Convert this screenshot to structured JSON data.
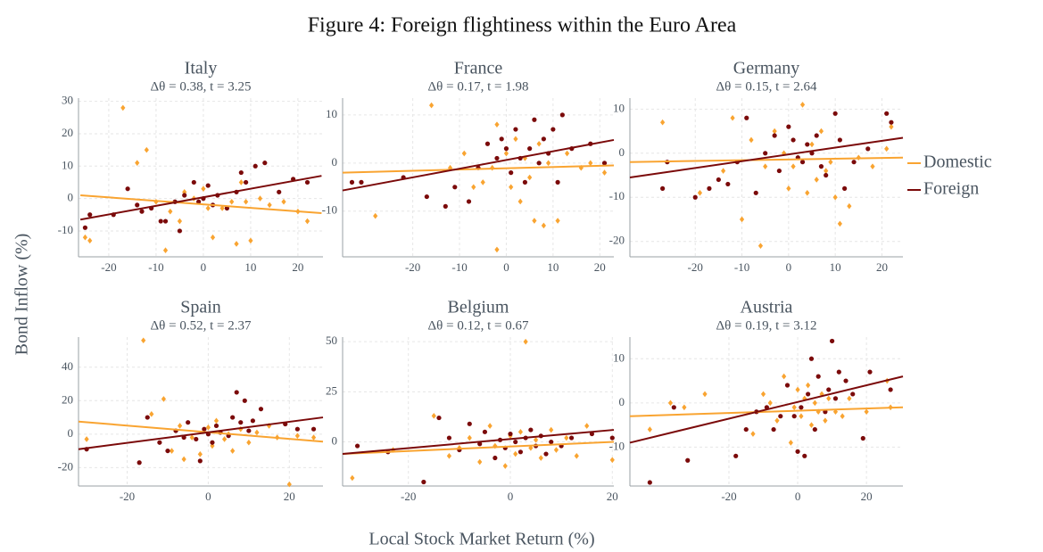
{
  "title": "Figure 4: Foreign flightiness within the Euro Area",
  "xlabel": "Local Stock Market Return (%)",
  "ylabel": "Bond Inflow (%)",
  "chart_data": [
    {
      "type": "scatter",
      "title": "Italy",
      "subtitle": "Δθ = 0.38, t = 3.25",
      "xlim": [
        -26.4,
        25.3
      ],
      "ylim": [
        -18,
        31
      ],
      "xticks": [
        -20,
        -10,
        0,
        10,
        20
      ],
      "yticks": [
        -10,
        0,
        10,
        20,
        30
      ],
      "grid": true,
      "series": [
        {
          "name": "Domestic",
          "color": "#f9a431",
          "x": [
            -25,
            -24,
            -17,
            -14,
            -12,
            -10,
            -7,
            -5,
            -4,
            -8,
            -2,
            0,
            1,
            2,
            4,
            6,
            7,
            8,
            9,
            10,
            12,
            14,
            17,
            20,
            22
          ],
          "values": [
            -12,
            -13,
            28,
            11,
            15,
            -1,
            -4,
            -7,
            2,
            -16,
            0,
            3,
            -3,
            -12,
            -3,
            -1,
            -14,
            5,
            -1,
            -13,
            0,
            -2,
            -1,
            -4,
            -7
          ],
          "fit_x": [
            -26,
            25
          ],
          "fit_values": [
            1,
            -4.5
          ]
        },
        {
          "name": "Foreign",
          "color": "#7b0a0a",
          "x": [
            -25,
            -24,
            -19,
            -16,
            -14,
            -13,
            -11,
            -9,
            -8,
            -6,
            -5,
            -4,
            -2,
            -1,
            0,
            1,
            2,
            3,
            5,
            7,
            8,
            9,
            11,
            13,
            16,
            19,
            22
          ],
          "values": [
            -9,
            -5,
            -5,
            3,
            -2,
            -4,
            -3,
            -7,
            -7,
            -1,
            -10,
            1,
            5,
            -1,
            0,
            4,
            -2,
            1,
            -3,
            2,
            8,
            5,
            10,
            11,
            2,
            6,
            5
          ],
          "fit_x": [
            -26,
            25
          ],
          "fit_values": [
            -6.5,
            7
          ]
        }
      ]
    },
    {
      "type": "scatter",
      "title": "France",
      "subtitle": "Δθ = 0.17, t = 1.98",
      "xlim": [
        -35,
        23
      ],
      "ylim": [
        -19.5,
        13.5
      ],
      "xticks": [
        -20,
        -10,
        0,
        10,
        20
      ],
      "yticks": [
        -10,
        0,
        10
      ],
      "grid": true,
      "series": [
        {
          "name": "Domestic",
          "color": "#f9a431",
          "x": [
            -28,
            -16,
            -12,
            -9,
            -7,
            -5,
            -3,
            -2,
            0,
            1,
            2,
            3,
            4,
            5,
            6,
            7,
            8,
            9,
            11,
            13,
            16,
            18,
            21,
            -2
          ],
          "values": [
            -11,
            12,
            -1,
            2,
            -5,
            -4,
            -1,
            8,
            2,
            -5,
            5,
            -8,
            1,
            -3,
            -12,
            4,
            -13,
            0,
            -12,
            2,
            -1,
            0,
            -2,
            -18
          ],
          "fit_x": [
            -35,
            23
          ],
          "fit_values": [
            -2,
            -0.5
          ]
        },
        {
          "name": "Foreign",
          "color": "#7b0a0a",
          "x": [
            -33,
            -31,
            -22,
            -17,
            -13,
            -11,
            -8,
            -6,
            -4,
            -2,
            -1,
            0,
            1,
            2,
            3,
            4,
            5,
            6,
            7,
            8,
            9,
            10,
            11,
            12,
            14,
            18,
            21
          ],
          "values": [
            -4,
            -4,
            -3,
            -7,
            -9,
            -5,
            -8,
            -1,
            4,
            1,
            5,
            3,
            -2,
            7,
            1,
            -4,
            3,
            9,
            0,
            5,
            2,
            7,
            -4,
            10,
            3,
            4,
            0
          ],
          "fit_x": [
            -35,
            23
          ],
          "fit_values": [
            -5.7,
            4.8
          ]
        }
      ]
    },
    {
      "type": "scatter",
      "title": "Germany",
      "subtitle": "Δθ = 0.15, t = 2.64",
      "xlim": [
        -34,
        24.5
      ],
      "ylim": [
        -23.5,
        12.5
      ],
      "xticks": [
        -20,
        -10,
        0,
        10,
        20
      ],
      "yticks": [
        -20,
        -10,
        0,
        10
      ],
      "grid": true,
      "series": [
        {
          "name": "Domestic",
          "color": "#f9a431",
          "x": [
            -27,
            -19,
            -14,
            -12,
            -10,
            -8,
            -6,
            -5,
            -3,
            -1,
            0,
            1,
            2,
            3,
            4,
            5,
            6,
            7,
            8,
            9,
            10,
            11,
            13,
            15,
            18,
            21,
            22
          ],
          "values": [
            7,
            -9,
            -4,
            8,
            -15,
            3,
            -21,
            -3,
            5,
            0,
            -8,
            -3,
            -1,
            11,
            -9,
            2,
            -6,
            5,
            -4,
            -2,
            -10,
            -16,
            -12,
            -1,
            -3,
            1,
            6
          ],
          "fit_x": [
            -34,
            24.5
          ],
          "fit_values": [
            -2,
            -1
          ]
        },
        {
          "name": "Foreign",
          "color": "#7b0a0a",
          "x": [
            -27,
            -26,
            -20,
            -17,
            -15,
            -13,
            -11,
            -9,
            -7,
            -5,
            -3,
            -2,
            0,
            1,
            2,
            3,
            4,
            5,
            6,
            7,
            8,
            10,
            11,
            12,
            14,
            17,
            21,
            22
          ],
          "values": [
            -8,
            -2,
            -10,
            -8,
            -6,
            -7,
            -2,
            8,
            -9,
            0,
            4,
            -4,
            6,
            3,
            -1,
            -2,
            2,
            0,
            4,
            -3,
            -5,
            9,
            3,
            -8,
            -2,
            1,
            9,
            7
          ],
          "fit_x": [
            -34,
            24.5
          ],
          "fit_values": [
            -5.5,
            3.5
          ]
        }
      ]
    },
    {
      "type": "scatter",
      "title": "Spain",
      "subtitle": "Δθ = 0.52, t = 2.37",
      "xlim": [
        -32,
        28.3
      ],
      "ylim": [
        -31,
        58
      ],
      "xticks": [
        -20,
        0,
        20
      ],
      "yticks": [
        -20,
        0,
        20,
        40
      ],
      "grid": true,
      "series": [
        {
          "name": "Domestic",
          "color": "#f9a431",
          "x": [
            -30,
            -16,
            -14,
            -11,
            -9,
            -7,
            -6,
            -4,
            -2,
            0,
            1,
            2,
            4,
            5,
            6,
            8,
            10,
            12,
            15,
            17,
            20,
            22,
            26
          ],
          "values": [
            -3,
            56,
            12,
            21,
            -10,
            5,
            -15,
            -2,
            -12,
            4,
            -7,
            8,
            -3,
            0,
            -10,
            3,
            -5,
            1,
            5,
            -2,
            -30,
            -1,
            -2
          ],
          "fit_x": [
            -32,
            28.3
          ],
          "fit_values": [
            7.5,
            -4.5
          ]
        },
        {
          "name": "Foreign",
          "color": "#7b0a0a",
          "x": [
            -30,
            -17,
            -15,
            -12,
            -10,
            -8,
            -6,
            -5,
            -3,
            -2,
            -1,
            0,
            1,
            2,
            3,
            5,
            6,
            7,
            8,
            9,
            10,
            11,
            13,
            19,
            22,
            26
          ],
          "values": [
            -9,
            -17,
            10,
            -5,
            -10,
            2,
            -2,
            7,
            -3,
            -16,
            3,
            0,
            -5,
            5,
            1,
            -1,
            10,
            25,
            7,
            20,
            2,
            8,
            15,
            6,
            3,
            3
          ],
          "fit_x": [
            -32,
            28.3
          ],
          "fit_values": [
            -9,
            10
          ]
        }
      ]
    },
    {
      "type": "scatter",
      "title": "Belgium",
      "subtitle": "Δθ = 0.12, t = 0.67",
      "xlim": [
        -32.9,
        20.3
      ],
      "ylim": [
        -22,
        52.3
      ],
      "xticks": [
        -20,
        0,
        20
      ],
      "yticks": [
        0,
        25,
        50
      ],
      "grid": true,
      "series": [
        {
          "name": "Domestic",
          "color": "#f9a431",
          "x": [
            -31,
            -23,
            -15,
            -12,
            -10,
            -8,
            -6,
            -4,
            -3,
            -1,
            0,
            1,
            2,
            3,
            4,
            5,
            6,
            8,
            9,
            11,
            13,
            15,
            20
          ],
          "values": [
            -18,
            -4,
            13,
            -7,
            -3,
            2,
            -10,
            8,
            -2,
            -12,
            3,
            -6,
            5,
            50,
            -3,
            1,
            -8,
            6,
            -4,
            2,
            -7,
            8,
            -9
          ],
          "fit_x": [
            -32.9,
            20.3
          ],
          "fit_values": [
            -6,
            0
          ]
        },
        {
          "name": "Foreign",
          "color": "#7b0a0a",
          "x": [
            -30,
            -24,
            -17,
            -14,
            -12,
            -10,
            -8,
            -6,
            -5,
            -3,
            -2,
            -1,
            0,
            1,
            2,
            3,
            4,
            5,
            6,
            7,
            8,
            10,
            12,
            16,
            20
          ],
          "values": [
            -2,
            -5,
            -20,
            12,
            2,
            -4,
            9,
            -1,
            5,
            -8,
            1,
            -3,
            4,
            0,
            -5,
            2,
            6,
            -2,
            3,
            -6,
            0,
            -2,
            2,
            4,
            2
          ],
          "fit_x": [
            -32.9,
            20.3
          ],
          "fit_values": [
            -6,
            6
          ]
        }
      ]
    },
    {
      "type": "scatter",
      "title": "Austria",
      "subtitle": "Δθ = 0.19, t = 3.12",
      "xlim": [
        -48.8,
        30.6
      ],
      "ylim": [
        -18.8,
        14.9
      ],
      "xticks": [
        -20,
        0,
        20
      ],
      "yticks": [
        -10,
        0,
        10
      ],
      "grid": true,
      "series": [
        {
          "name": "Domestic",
          "color": "#f9a431",
          "x": [
            -43,
            -37,
            -33,
            -27,
            -13,
            -10,
            -8,
            -6,
            -4,
            -2,
            -1,
            0,
            1,
            2,
            3,
            4,
            5,
            6,
            7,
            8,
            9,
            11,
            13,
            15,
            20,
            27,
            26
          ],
          "values": [
            -6,
            0,
            -1,
            2,
            -7,
            2,
            0,
            -4,
            6,
            -9,
            -1,
            3,
            -3,
            1,
            4,
            -5,
            0,
            -2,
            2,
            -4,
            1,
            -2,
            -3,
            1,
            -2,
            -1,
            5
          ],
          "fit_x": [
            -48.8,
            30.6
          ],
          "fit_values": [
            -3,
            -1
          ]
        },
        {
          "name": "Foreign",
          "color": "#7b0a0a",
          "x": [
            -43,
            -36,
            -32,
            -18,
            -15,
            -12,
            -9,
            -7,
            -5,
            -3,
            -1,
            0,
            1,
            2,
            3,
            4,
            5,
            6,
            8,
            9,
            10,
            11,
            12,
            14,
            16,
            19,
            21,
            27
          ],
          "values": [
            -18,
            -1,
            -13,
            -12,
            -6,
            -2,
            -1,
            -6,
            -3,
            4,
            -3,
            -11,
            -1,
            -12,
            2,
            10,
            -6,
            6,
            -2,
            3,
            14,
            1,
            7,
            5,
            2,
            -8,
            7,
            3
          ],
          "fit_x": [
            -48.8,
            30.6
          ],
          "fit_values": [
            -9,
            6
          ]
        }
      ]
    }
  ]
}
